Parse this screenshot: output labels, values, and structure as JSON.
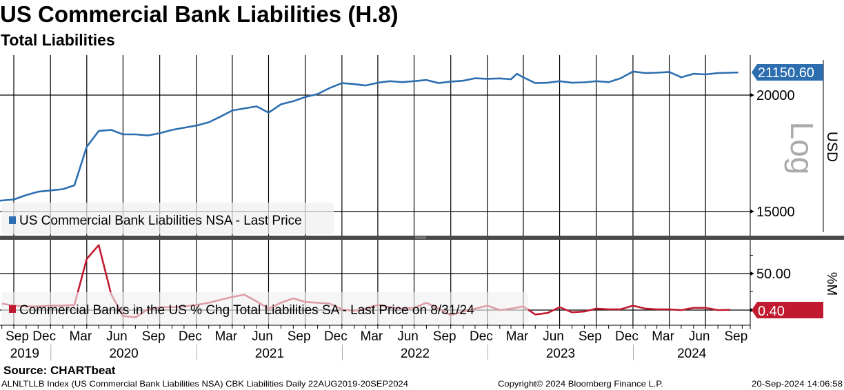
{
  "header": {
    "title": "US Commercial Bank Liabilities (H.8)",
    "subtitle": "Total Liabilities"
  },
  "chart_data": [
    {
      "type": "line",
      "panel": "top",
      "legend": "US Commercial Bank Liabilities NSA - Last Price",
      "color": "#2c6eb0",
      "ylabel": "USD",
      "scale_label": "Log",
      "y_scale": "log",
      "ylim": [
        14180,
        22080
      ],
      "yticks": [
        15000,
        20000
      ],
      "ytick_labels": [
        "15000",
        "20000"
      ],
      "last_value_label": "21150.60",
      "grid": true,
      "legend_placement": "bottom-left",
      "points": [
        [
          "2019-08-22",
          15400
        ],
        [
          "2019-09-30",
          15450
        ],
        [
          "2019-10-31",
          15620
        ],
        [
          "2019-11-30",
          15750
        ],
        [
          "2019-12-31",
          15800
        ],
        [
          "2020-01-31",
          15850
        ],
        [
          "2020-02-29",
          16000
        ],
        [
          "2020-03-31",
          17600
        ],
        [
          "2020-04-30",
          18300
        ],
        [
          "2020-05-31",
          18350
        ],
        [
          "2020-06-30",
          18150
        ],
        [
          "2020-07-31",
          18150
        ],
        [
          "2020-08-31",
          18100
        ],
        [
          "2020-09-30",
          18200
        ],
        [
          "2020-10-31",
          18350
        ],
        [
          "2020-11-30",
          18450
        ],
        [
          "2020-12-31",
          18550
        ],
        [
          "2021-01-31",
          18700
        ],
        [
          "2021-02-28",
          18950
        ],
        [
          "2021-03-31",
          19250
        ],
        [
          "2021-04-30",
          19350
        ],
        [
          "2021-05-31",
          19450
        ],
        [
          "2021-06-30",
          19150
        ],
        [
          "2021-07-31",
          19550
        ],
        [
          "2021-08-31",
          19700
        ],
        [
          "2021-09-30",
          19900
        ],
        [
          "2021-10-31",
          20050
        ],
        [
          "2021-11-30",
          20350
        ],
        [
          "2021-12-31",
          20600
        ],
        [
          "2022-01-31",
          20550
        ],
        [
          "2022-02-28",
          20480
        ],
        [
          "2022-03-31",
          20620
        ],
        [
          "2022-04-30",
          20700
        ],
        [
          "2022-05-31",
          20650
        ],
        [
          "2022-06-30",
          20700
        ],
        [
          "2022-07-31",
          20760
        ],
        [
          "2022-08-31",
          20600
        ],
        [
          "2022-09-30",
          20680
        ],
        [
          "2022-10-31",
          20720
        ],
        [
          "2022-11-30",
          20850
        ],
        [
          "2022-12-31",
          20820
        ],
        [
          "2023-01-31",
          20840
        ],
        [
          "2023-02-28",
          20800
        ],
        [
          "2023-03-15",
          21080
        ],
        [
          "2023-03-31",
          20900
        ],
        [
          "2023-04-30",
          20600
        ],
        [
          "2023-05-31",
          20620
        ],
        [
          "2023-06-30",
          20700
        ],
        [
          "2023-07-31",
          20620
        ],
        [
          "2023-08-31",
          20640
        ],
        [
          "2023-09-30",
          20700
        ],
        [
          "2023-10-31",
          20650
        ],
        [
          "2023-11-30",
          20850
        ],
        [
          "2023-12-31",
          21200
        ],
        [
          "2024-01-31",
          21120
        ],
        [
          "2024-02-29",
          21140
        ],
        [
          "2024-03-31",
          21180
        ],
        [
          "2024-04-30",
          20900
        ],
        [
          "2024-05-31",
          21080
        ],
        [
          "2024-06-30",
          21050
        ],
        [
          "2024-07-31",
          21120
        ],
        [
          "2024-08-31",
          21140
        ],
        [
          "2024-09-20",
          21150.6
        ]
      ]
    },
    {
      "type": "line",
      "panel": "bottom",
      "legend": "Commercial Banks in the US % Chg Total Liabilities SA - Last Price on 8/31/24",
      "color": "#c11a30",
      "ylabel": "%M",
      "ylim": [
        -19,
        96
      ],
      "yticks": [
        0,
        50
      ],
      "ytick_labels": [
        "",
        "50.00"
      ],
      "minor_yticks": [
        25,
        75
      ],
      "last_value_label": "0.40",
      "grid": true,
      "legend_placement": "bottom-left",
      "points": [
        [
          "2019-08",
          9
        ],
        [
          "2019-09",
          6
        ],
        [
          "2019-10",
          5
        ],
        [
          "2019-11",
          5
        ],
        [
          "2019-12",
          6
        ],
        [
          "2020-01",
          6
        ],
        [
          "2020-02",
          7
        ],
        [
          "2020-03",
          70
        ],
        [
          "2020-04",
          89
        ],
        [
          "2020-05",
          22
        ],
        [
          "2020-06",
          -8
        ],
        [
          "2020-07",
          -10
        ],
        [
          "2020-08",
          1
        ],
        [
          "2020-09",
          4
        ],
        [
          "2020-10",
          4
        ],
        [
          "2020-11",
          5
        ],
        [
          "2020-12",
          7
        ],
        [
          "2021-01",
          10
        ],
        [
          "2021-02",
          14
        ],
        [
          "2021-03",
          18
        ],
        [
          "2021-04",
          21
        ],
        [
          "2021-05",
          12
        ],
        [
          "2021-06",
          2
        ],
        [
          "2021-07",
          10
        ],
        [
          "2021-08",
          16
        ],
        [
          "2021-09",
          11
        ],
        [
          "2021-10",
          10
        ],
        [
          "2021-11",
          9
        ],
        [
          "2021-12",
          1
        ],
        [
          "2022-01",
          -1
        ],
        [
          "2022-02",
          2
        ],
        [
          "2022-03",
          7
        ],
        [
          "2022-04",
          4
        ],
        [
          "2022-05",
          2
        ],
        [
          "2022-06",
          3
        ],
        [
          "2022-07",
          10
        ],
        [
          "2022-08",
          2
        ],
        [
          "2022-09",
          -7
        ],
        [
          "2022-10",
          -2
        ],
        [
          "2022-11",
          2
        ],
        [
          "2022-12",
          6
        ],
        [
          "2023-01",
          0
        ],
        [
          "2023-02",
          2
        ],
        [
          "2023-03",
          5
        ],
        [
          "2023-04",
          -6
        ],
        [
          "2023-05",
          -4
        ],
        [
          "2023-06",
          4
        ],
        [
          "2023-07",
          -3
        ],
        [
          "2023-08",
          -2
        ],
        [
          "2023-09",
          2
        ],
        [
          "2023-10",
          1
        ],
        [
          "2023-11",
          1
        ],
        [
          "2023-12",
          6
        ],
        [
          "2024-01",
          2
        ],
        [
          "2024-02",
          1
        ],
        [
          "2024-03",
          1
        ],
        [
          "2024-04",
          0
        ],
        [
          "2024-05",
          3
        ],
        [
          "2024-06",
          3
        ],
        [
          "2024-07",
          0
        ],
        [
          "2024-08",
          0.4
        ]
      ]
    }
  ],
  "x_axis": {
    "month_labels": [
      {
        "label": "Sep",
        "month": "2019-09"
      },
      {
        "label": "Dec",
        "month": "2019-12"
      },
      {
        "label": "Mar",
        "month": "2020-03"
      },
      {
        "label": "Jun",
        "month": "2020-06"
      },
      {
        "label": "Sep",
        "month": "2020-09"
      },
      {
        "label": "Dec",
        "month": "2020-12"
      },
      {
        "label": "Mar",
        "month": "2021-03"
      },
      {
        "label": "Jun",
        "month": "2021-06"
      },
      {
        "label": "Sep",
        "month": "2021-09"
      },
      {
        "label": "Dec",
        "month": "2021-12"
      },
      {
        "label": "Mar",
        "month": "2022-03"
      },
      {
        "label": "Jun",
        "month": "2022-06"
      },
      {
        "label": "Sep",
        "month": "2022-09"
      },
      {
        "label": "Dec",
        "month": "2022-12"
      },
      {
        "label": "Mar",
        "month": "2023-03"
      },
      {
        "label": "Jun",
        "month": "2023-06"
      },
      {
        "label": "Sep",
        "month": "2023-09"
      },
      {
        "label": "Dec",
        "month": "2023-12"
      },
      {
        "label": "Mar",
        "month": "2024-03"
      },
      {
        "label": "Jun",
        "month": "2024-06"
      },
      {
        "label": "Sep",
        "month": "2024-09"
      }
    ],
    "year_labels": [
      "2019",
      "2020",
      "2021",
      "2022",
      "2023",
      "2024"
    ]
  },
  "footer": {
    "source": "Source: CHARTbeat",
    "info": "ALNLTLLB Index (US Commercial Bank Liabilities NSA) CBK Liabilities  Daily 22AUG2019-20SEP2024",
    "copyright": "Copyright© 2024 Bloomberg Finance L.P.",
    "timestamp": "20-Sep-2024 14:06:58"
  }
}
